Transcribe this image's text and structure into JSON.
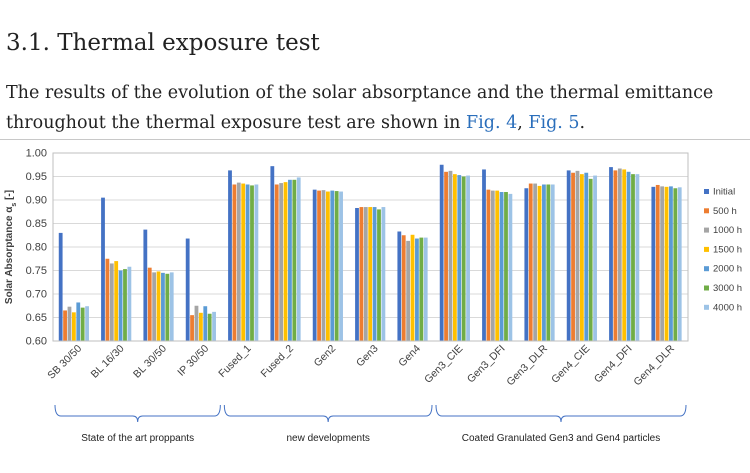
{
  "section": {
    "heading": "3.1. Thermal exposure test"
  },
  "paragraph": {
    "text_before": "The results of the evolution of the solar absorptance and the thermal emittance throughout the thermal exposure test are shown in ",
    "link1": "Fig. 4",
    "sep": ", ",
    "link2": "Fig. 5",
    "text_after": "."
  },
  "chart_data": {
    "type": "bar",
    "ylabel": "Solar Absorptance α_s [-]",
    "ylabel_main": "Solar Absorptance α",
    "ylabel_sub": "s",
    "ylabel_unit": " [-]",
    "ylim": [
      0.6,
      1.0
    ],
    "yticks": [
      "1.00",
      "0.95",
      "0.90",
      "0.85",
      "0.80",
      "0.75",
      "0.70",
      "0.65",
      "0.60"
    ],
    "grid": true,
    "legend_position": "right",
    "categories": [
      "SB 30/50",
      "BL 16/30",
      "BL 30/50",
      "IP 30/50",
      "Fused_1",
      "Fused_2",
      "Gen2",
      "Gen3",
      "Gen4",
      "Gen3_CIE",
      "Gen3_DFI",
      "Gen3_DLR",
      "Gen4_CIE",
      "Gen4_DFI",
      "Gen4_DLR"
    ],
    "series": [
      {
        "name": "Initial",
        "color": "#4472c4",
        "values": [
          0.83,
          0.905,
          0.837,
          0.818,
          0.963,
          0.972,
          0.922,
          0.883,
          0.833,
          0.975,
          0.965,
          0.925,
          0.963,
          0.97,
          0.928
        ]
      },
      {
        "name": "500 h",
        "color": "#ed7d31",
        "values": [
          0.665,
          0.775,
          0.756,
          0.655,
          0.933,
          0.933,
          0.92,
          0.885,
          0.825,
          0.96,
          0.922,
          0.935,
          0.958,
          0.963,
          0.932
        ]
      },
      {
        "name": "1000 h",
        "color": "#a5a5a5",
        "values": [
          0.673,
          0.765,
          0.746,
          0.675,
          0.937,
          0.936,
          0.921,
          0.885,
          0.813,
          0.962,
          0.92,
          0.935,
          0.962,
          0.967,
          0.929
        ]
      },
      {
        "name": "1500 h",
        "color": "#ffc000",
        "values": [
          0.661,
          0.77,
          0.748,
          0.66,
          0.935,
          0.938,
          0.918,
          0.885,
          0.826,
          0.955,
          0.92,
          0.93,
          0.955,
          0.965,
          0.928
        ]
      },
      {
        "name": "2000 h",
        "color": "#5b9bd5",
        "values": [
          0.682,
          0.75,
          0.745,
          0.674,
          0.933,
          0.943,
          0.92,
          0.885,
          0.818,
          0.953,
          0.917,
          0.933,
          0.958,
          0.96,
          0.929
        ]
      },
      {
        "name": "3000 h",
        "color": "#70ad47",
        "values": [
          0.671,
          0.753,
          0.743,
          0.658,
          0.931,
          0.943,
          0.919,
          0.88,
          0.82,
          0.95,
          0.917,
          0.933,
          0.945,
          0.955,
          0.925
        ]
      },
      {
        "name": "4000 h",
        "color": "#9dc3e6",
        "values": [
          0.674,
          0.758,
          0.746,
          0.662,
          0.933,
          0.948,
          0.918,
          0.885,
          0.82,
          0.952,
          0.913,
          0.933,
          0.952,
          0.955,
          0.927
        ]
      }
    ],
    "groups": [
      {
        "label": "State of the art proppants",
        "first": 0,
        "last": 3
      },
      {
        "label": "new developments",
        "first": 4,
        "last": 8
      },
      {
        "label": "Coated Granulated Gen3 and Gen4 particles",
        "first": 9,
        "last": 14
      }
    ]
  }
}
